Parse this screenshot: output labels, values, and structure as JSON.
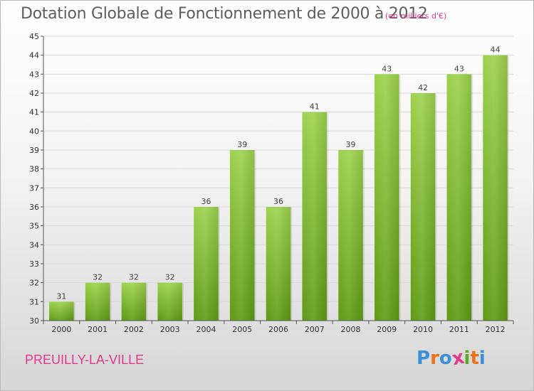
{
  "header": {
    "title": "Dotation Globale de Fonctionnement de 2000 à 2012",
    "subtitle": "(en milliers d'€)"
  },
  "footer": {
    "place": "PREUILLY-LA-VILLE",
    "logo": [
      "P",
      "r",
      "o",
      "x",
      "i",
      "t",
      "i"
    ],
    "logo_colors": [
      "#3b8fd8",
      "#e8731a",
      "#3b8fd8",
      "#e0398a",
      "#5aa92a",
      "#e8731a",
      "#3b8fd8"
    ]
  },
  "colors": {
    "bar_top": "#9cd14c",
    "bar_bottom": "#5f9a14",
    "grid": "#d9d9d9",
    "axis": "#555555"
  },
  "chart_data": {
    "type": "bar",
    "title": "Dotation Globale de Fonctionnement de 2000 à 2012",
    "subtitle": "(en milliers d'€)",
    "xlabel": "",
    "ylabel": "",
    "categories": [
      "2000",
      "2001",
      "2002",
      "2003",
      "2004",
      "2005",
      "2006",
      "2007",
      "2008",
      "2009",
      "2010",
      "2011",
      "2012"
    ],
    "values": [
      31,
      32,
      32,
      32,
      36,
      39,
      36,
      41,
      39,
      43,
      42,
      43,
      44
    ],
    "ylim": [
      30,
      45
    ],
    "yticks": [
      30,
      31,
      32,
      33,
      34,
      35,
      36,
      37,
      38,
      39,
      40,
      41,
      42,
      43,
      44,
      45
    ],
    "grid": true,
    "legend": "none"
  }
}
